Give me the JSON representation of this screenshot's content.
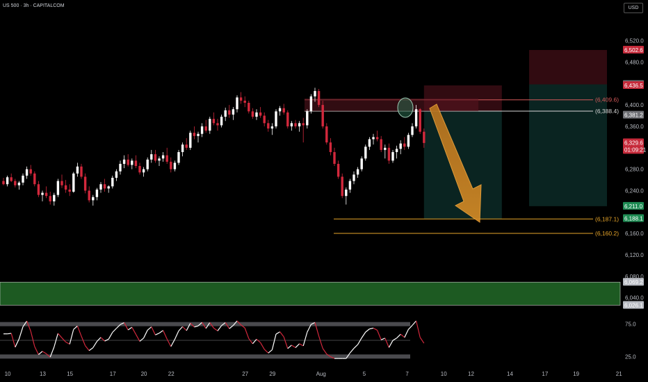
{
  "header": {
    "symbol_line": "US 500 · 3h · CAPITALCOM",
    "currency": "USD"
  },
  "chart_data": {
    "type": "candlestick",
    "price_axis": [
      6520.0,
      6480.0,
      6400.0,
      6360.0,
      6280.0,
      6240.0,
      6160.0,
      6120.0,
      6080.0,
      6040.0
    ],
    "ylim": [
      6015,
      6570
    ],
    "date_ticks": [
      {
        "label": "10",
        "i": 1
      },
      {
        "label": "13",
        "i": 10
      },
      {
        "label": "15",
        "i": 17
      },
      {
        "label": "17",
        "i": 28
      },
      {
        "label": "20",
        "i": 36
      },
      {
        "label": "22",
        "i": 43
      },
      {
        "label": "27",
        "i": 62
      },
      {
        "label": "29",
        "i": 69
      },
      {
        "label": "Aug",
        "i": 81
      },
      {
        "label": "5",
        "i": 93
      },
      {
        "label": "7",
        "i": 104
      },
      {
        "label": "10",
        "i": 113
      },
      {
        "label": "12",
        "i": 120
      },
      {
        "label": "14",
        "i": 130
      },
      {
        "label": "17",
        "i": 139
      },
      {
        "label": "19",
        "i": 147
      },
      {
        "label": "21",
        "i": 158
      }
    ],
    "price_tags": [
      {
        "price": 6502.6,
        "text": "6,502.6",
        "color": "#c62a3a"
      },
      {
        "price": 6438.4,
        "text": "6,438.4",
        "color": "#6f7075"
      },
      {
        "price": 6436.5,
        "text": "6,436.5",
        "color": "#c62a3a"
      },
      {
        "price": 6381.2,
        "text": "6,381.2",
        "color": "#6f7075"
      },
      {
        "price": 6329.6,
        "text": "6,329.6",
        "sub": "01:09:21",
        "color": "#c62a3a"
      },
      {
        "price": 6211.0,
        "text": "6,211.0",
        "color": "#1e8c54"
      },
      {
        "price": 6188.1,
        "text": "6,188.1",
        "color": "#1e8c54"
      },
      {
        "price": 6069.2,
        "text": "6,069.2",
        "color": "#b8bbc2",
        "dark": true
      },
      {
        "price": 6026.1,
        "text": "6,026.1",
        "color": "#b8bbc2",
        "dark": true
      }
    ],
    "levels": [
      {
        "price": 6409.6,
        "text": "(6,409.6)",
        "color": "#d65a5a"
      },
      {
        "price": 6388.4,
        "text": "(6,388.4)",
        "color": "#d9d9d9"
      },
      {
        "price": 6187.1,
        "text": "(6,187.1)",
        "color": "#e8a62a"
      },
      {
        "price": 6160.2,
        "text": "(6,160.2)",
        "color": "#e8a62a"
      }
    ],
    "support_zone": [
      6026.1,
      6069.2
    ],
    "positions": [
      {
        "from": 108,
        "to": 128,
        "entry": 6388.4,
        "stop": 6436.5,
        "target": 6187.1
      },
      {
        "from": 135,
        "to": 155,
        "entry": 6438.4,
        "stop": 6502.6,
        "target": 6211.0
      }
    ],
    "rsi": {
      "axis": [
        75.0,
        25.0
      ],
      "upper": 75,
      "lower": 25,
      "mid": 50
    },
    "candles": [
      [
        6258,
        6264,
        6250,
        6252
      ],
      [
        6252,
        6268,
        6248,
        6265
      ],
      [
        6265,
        6272,
        6256,
        6258
      ],
      [
        6258,
        6262,
        6246,
        6250
      ],
      [
        6250,
        6258,
        6242,
        6255
      ],
      [
        6255,
        6272,
        6250,
        6268
      ],
      [
        6268,
        6285,
        6262,
        6280
      ],
      [
        6280,
        6288,
        6268,
        6272
      ],
      [
        6272,
        6276,
        6248,
        6252
      ],
      [
        6252,
        6258,
        6228,
        6232
      ],
      [
        6232,
        6240,
        6220,
        6236
      ],
      [
        6236,
        6248,
        6226,
        6230
      ],
      [
        6230,
        6238,
        6214,
        6220
      ],
      [
        6220,
        6236,
        6212,
        6232
      ],
      [
        6232,
        6262,
        6228,
        6258
      ],
      [
        6258,
        6270,
        6245,
        6250
      ],
      [
        6250,
        6260,
        6236,
        6242
      ],
      [
        6242,
        6252,
        6230,
        6238
      ],
      [
        6238,
        6275,
        6236,
        6272
      ],
      [
        6272,
        6292,
        6266,
        6285
      ],
      [
        6285,
        6290,
        6262,
        6266
      ],
      [
        6266,
        6272,
        6235,
        6240
      ],
      [
        6240,
        6248,
        6218,
        6222
      ],
      [
        6222,
        6232,
        6212,
        6228
      ],
      [
        6228,
        6245,
        6222,
        6242
      ],
      [
        6242,
        6256,
        6236,
        6252
      ],
      [
        6252,
        6262,
        6238,
        6244
      ],
      [
        6244,
        6250,
        6236,
        6248
      ],
      [
        6248,
        6268,
        6244,
        6264
      ],
      [
        6264,
        6280,
        6258,
        6276
      ],
      [
        6276,
        6296,
        6270,
        6290
      ],
      [
        6290,
        6306,
        6282,
        6298
      ],
      [
        6298,
        6308,
        6285,
        6288
      ],
      [
        6288,
        6300,
        6280,
        6296
      ],
      [
        6296,
        6306,
        6282,
        6286
      ],
      [
        6286,
        6292,
        6270,
        6274
      ],
      [
        6274,
        6284,
        6266,
        6280
      ],
      [
        6280,
        6302,
        6276,
        6298
      ],
      [
        6298,
        6316,
        6292,
        6308
      ],
      [
        6308,
        6316,
        6292,
        6296
      ],
      [
        6296,
        6304,
        6286,
        6300
      ],
      [
        6300,
        6312,
        6294,
        6306
      ],
      [
        6306,
        6320,
        6290,
        6294
      ],
      [
        6294,
        6302,
        6274,
        6280
      ],
      [
        6280,
        6296,
        6276,
        6292
      ],
      [
        6292,
        6316,
        6288,
        6312
      ],
      [
        6312,
        6330,
        6304,
        6326
      ],
      [
        6326,
        6338,
        6316,
        6320
      ],
      [
        6320,
        6352,
        6316,
        6348
      ],
      [
        6348,
        6360,
        6336,
        6342
      ],
      [
        6342,
        6350,
        6330,
        6346
      ],
      [
        6346,
        6366,
        6340,
        6360
      ],
      [
        6360,
        6372,
        6348,
        6352
      ],
      [
        6352,
        6378,
        6346,
        6374
      ],
      [
        6374,
        6386,
        6362,
        6366
      ],
      [
        6366,
        6374,
        6352,
        6362
      ],
      [
        6362,
        6382,
        6358,
        6378
      ],
      [
        6378,
        6395,
        6370,
        6390
      ],
      [
        6390,
        6400,
        6376,
        6382
      ],
      [
        6382,
        6396,
        6372,
        6392
      ],
      [
        6392,
        6418,
        6386,
        6414
      ],
      [
        6414,
        6424,
        6402,
        6408
      ],
      [
        6408,
        6416,
        6396,
        6404
      ],
      [
        6404,
        6408,
        6384,
        6388
      ],
      [
        6388,
        6394,
        6374,
        6378
      ],
      [
        6378,
        6392,
        6372,
        6386
      ],
      [
        6386,
        6396,
        6376,
        6380
      ],
      [
        6380,
        6386,
        6360,
        6366
      ],
      [
        6366,
        6372,
        6350,
        6356
      ],
      [
        6356,
        6366,
        6344,
        6360
      ],
      [
        6360,
        6392,
        6356,
        6388
      ],
      [
        6388,
        6398,
        6380,
        6394
      ],
      [
        6394,
        6402,
        6382,
        6386
      ],
      [
        6386,
        6390,
        6356,
        6360
      ],
      [
        6360,
        6370,
        6352,
        6366
      ],
      [
        6366,
        6372,
        6356,
        6360
      ],
      [
        6360,
        6370,
        6350,
        6366
      ],
      [
        6366,
        6376,
        6330,
        6362
      ],
      [
        6362,
        6392,
        6356,
        6388
      ],
      [
        6388,
        6420,
        6384,
        6416
      ],
      [
        6416,
        6432,
        6406,
        6426
      ],
      [
        6426,
        6430,
        6396,
        6400
      ],
      [
        6400,
        6408,
        6356,
        6360
      ],
      [
        6360,
        6366,
        6326,
        6330
      ],
      [
        6330,
        6338,
        6306,
        6312
      ],
      [
        6312,
        6320,
        6286,
        6290
      ],
      [
        6290,
        6296,
        6262,
        6266
      ],
      [
        6266,
        6272,
        6226,
        6230
      ],
      [
        6230,
        6246,
        6214,
        6242
      ],
      [
        6242,
        6262,
        6236,
        6258
      ],
      [
        6258,
        6276,
        6252,
        6270
      ],
      [
        6270,
        6284,
        6264,
        6280
      ],
      [
        6280,
        6304,
        6276,
        6300
      ],
      [
        6300,
        6326,
        6296,
        6322
      ],
      [
        6322,
        6340,
        6316,
        6336
      ],
      [
        6336,
        6346,
        6326,
        6340
      ],
      [
        6340,
        6352,
        6332,
        6336
      ],
      [
        6336,
        6342,
        6312,
        6316
      ],
      [
        6316,
        6326,
        6300,
        6320
      ],
      [
        6320,
        6328,
        6290,
        6296
      ],
      [
        6296,
        6316,
        6292,
        6312
      ],
      [
        6312,
        6324,
        6300,
        6318
      ],
      [
        6318,
        6334,
        6308,
        6328
      ],
      [
        6328,
        6340,
        6316,
        6322
      ],
      [
        6322,
        6348,
        6318,
        6344
      ],
      [
        6344,
        6366,
        6340,
        6360
      ],
      [
        6360,
        6400,
        6356,
        6392
      ],
      [
        6392,
        6394,
        6346,
        6350
      ],
      [
        6350,
        6356,
        6320,
        6329
      ]
    ]
  }
}
